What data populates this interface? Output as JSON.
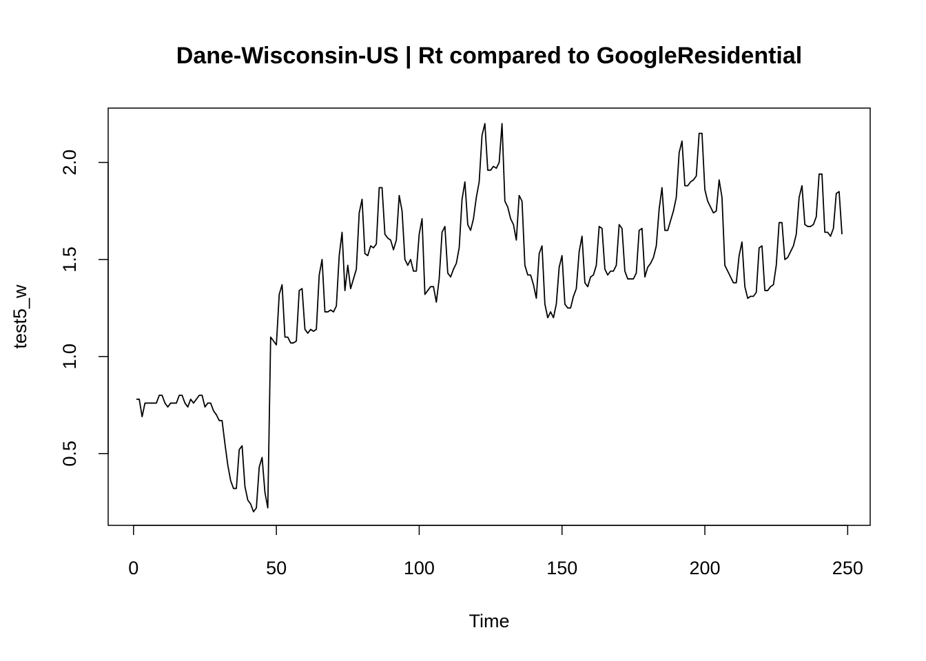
{
  "chart_data": {
    "type": "line",
    "title": "Dane-Wisconsin-US | Rt compared to GoogleResidential",
    "x_label": "Time",
    "y_label": "test5_w",
    "color": "#000000",
    "xlim": [
      -8.88,
      257.88
    ],
    "ylim": [
      0.13,
      2.28
    ],
    "xticks": [
      0,
      50,
      100,
      150,
      200,
      250
    ],
    "yticks": [
      0.5,
      {
        "value": 1.0,
        "label": "1.0"
      },
      1.5,
      {
        "value": 2.0,
        "label": "2.0"
      }
    ],
    "x": [
      1,
      2,
      3,
      4,
      5,
      6,
      7,
      8,
      9,
      10,
      11,
      12,
      13,
      14,
      15,
      16,
      17,
      18,
      19,
      20,
      21,
      22,
      23,
      24,
      25,
      26,
      27,
      28,
      29,
      30,
      31,
      32,
      33,
      34,
      35,
      36,
      37,
      38,
      39,
      40,
      41,
      42,
      43,
      44,
      45,
      46,
      47,
      48,
      49,
      50,
      51,
      52,
      53,
      54,
      55,
      56,
      57,
      58,
      59,
      60,
      61,
      62,
      63,
      64,
      65,
      66,
      67,
      68,
      69,
      70,
      71,
      72,
      73,
      74,
      75,
      76,
      77,
      78,
      79,
      80,
      81,
      82,
      83,
      84,
      85,
      86,
      87,
      88,
      89,
      90,
      91,
      92,
      93,
      94,
      95,
      96,
      97,
      98,
      99,
      100,
      101,
      102,
      103,
      104,
      105,
      106,
      107,
      108,
      109,
      110,
      111,
      112,
      113,
      114,
      115,
      116,
      117,
      118,
      119,
      120,
      121,
      122,
      123,
      124,
      125,
      126,
      127,
      128,
      129,
      130,
      131,
      132,
      133,
      134,
      135,
      136,
      137,
      138,
      139,
      140,
      141,
      142,
      143,
      144,
      145,
      146,
      147,
      148,
      149,
      150,
      151,
      152,
      153,
      154,
      155,
      156,
      157,
      158,
      159,
      160,
      161,
      162,
      163,
      164,
      165,
      166,
      167,
      168,
      169,
      170,
      171,
      172,
      173,
      174,
      175,
      176,
      177,
      178,
      179,
      180,
      181,
      182,
      183,
      184,
      185,
      186,
      187,
      188,
      189,
      190,
      191,
      192,
      193,
      194,
      195,
      196,
      197,
      198,
      199,
      200,
      201,
      202,
      203,
      204,
      205,
      206,
      207,
      208,
      209,
      210,
      211,
      212,
      213,
      214,
      215,
      216,
      217,
      218,
      219,
      220,
      221,
      222,
      223,
      224,
      225,
      226,
      227,
      228,
      229,
      230,
      231,
      232,
      233,
      234,
      235,
      236,
      237,
      238,
      239,
      240,
      241,
      242,
      243,
      244,
      245,
      246,
      247,
      248
    ],
    "values": [
      0.78,
      0.78,
      0.69,
      0.76,
      0.76,
      0.76,
      0.76,
      0.76,
      0.8,
      0.8,
      0.76,
      0.74,
      0.76,
      0.76,
      0.76,
      0.8,
      0.8,
      0.76,
      0.74,
      0.78,
      0.76,
      0.78,
      0.8,
      0.8,
      0.74,
      0.76,
      0.76,
      0.72,
      0.7,
      0.67,
      0.67,
      0.55,
      0.44,
      0.36,
      0.32,
      0.32,
      0.52,
      0.54,
      0.33,
      0.26,
      0.24,
      0.2,
      0.22,
      0.43,
      0.48,
      0.3,
      0.22,
      1.1,
      1.08,
      1.06,
      1.32,
      1.37,
      1.1,
      1.1,
      1.07,
      1.07,
      1.08,
      1.34,
      1.35,
      1.14,
      1.12,
      1.14,
      1.13,
      1.14,
      1.42,
      1.5,
      1.23,
      1.23,
      1.24,
      1.23,
      1.26,
      1.52,
      1.64,
      1.34,
      1.47,
      1.35,
      1.4,
      1.45,
      1.74,
      1.81,
      1.53,
      1.52,
      1.57,
      1.56,
      1.58,
      1.87,
      1.87,
      1.63,
      1.61,
      1.6,
      1.55,
      1.6,
      1.83,
      1.75,
      1.5,
      1.47,
      1.5,
      1.44,
      1.44,
      1.63,
      1.71,
      1.32,
      1.34,
      1.36,
      1.36,
      1.28,
      1.4,
      1.64,
      1.67,
      1.43,
      1.41,
      1.45,
      1.48,
      1.56,
      1.81,
      1.9,
      1.68,
      1.65,
      1.71,
      1.82,
      1.9,
      2.14,
      2.2,
      1.96,
      1.96,
      1.98,
      1.97,
      2.0,
      2.2,
      1.8,
      1.77,
      1.71,
      1.68,
      1.6,
      1.83,
      1.8,
      1.47,
      1.42,
      1.42,
      1.37,
      1.3,
      1.53,
      1.57,
      1.27,
      1.2,
      1.23,
      1.2,
      1.27,
      1.46,
      1.52,
      1.27,
      1.25,
      1.25,
      1.31,
      1.35,
      1.54,
      1.62,
      1.38,
      1.36,
      1.41,
      1.42,
      1.47,
      1.67,
      1.66,
      1.45,
      1.42,
      1.44,
      1.44,
      1.47,
      1.68,
      1.66,
      1.44,
      1.4,
      1.4,
      1.4,
      1.43,
      1.65,
      1.66,
      1.41,
      1.46,
      1.48,
      1.51,
      1.57,
      1.76,
      1.87,
      1.65,
      1.65,
      1.7,
      1.75,
      1.82,
      2.05,
      2.11,
      1.88,
      1.88,
      1.9,
      1.91,
      1.93,
      2.15,
      2.15,
      1.86,
      1.8,
      1.77,
      1.74,
      1.75,
      1.91,
      1.82,
      1.47,
      1.44,
      1.41,
      1.38,
      1.38,
      1.52,
      1.59,
      1.36,
      1.3,
      1.31,
      1.31,
      1.33,
      1.56,
      1.57,
      1.34,
      1.34,
      1.36,
      1.37,
      1.47,
      1.69,
      1.69,
      1.5,
      1.51,
      1.54,
      1.57,
      1.63,
      1.82,
      1.88,
      1.68,
      1.67,
      1.67,
      1.68,
      1.72,
      1.94,
      1.94,
      1.64,
      1.64,
      1.62,
      1.66,
      1.84,
      1.85,
      1.63
    ]
  }
}
